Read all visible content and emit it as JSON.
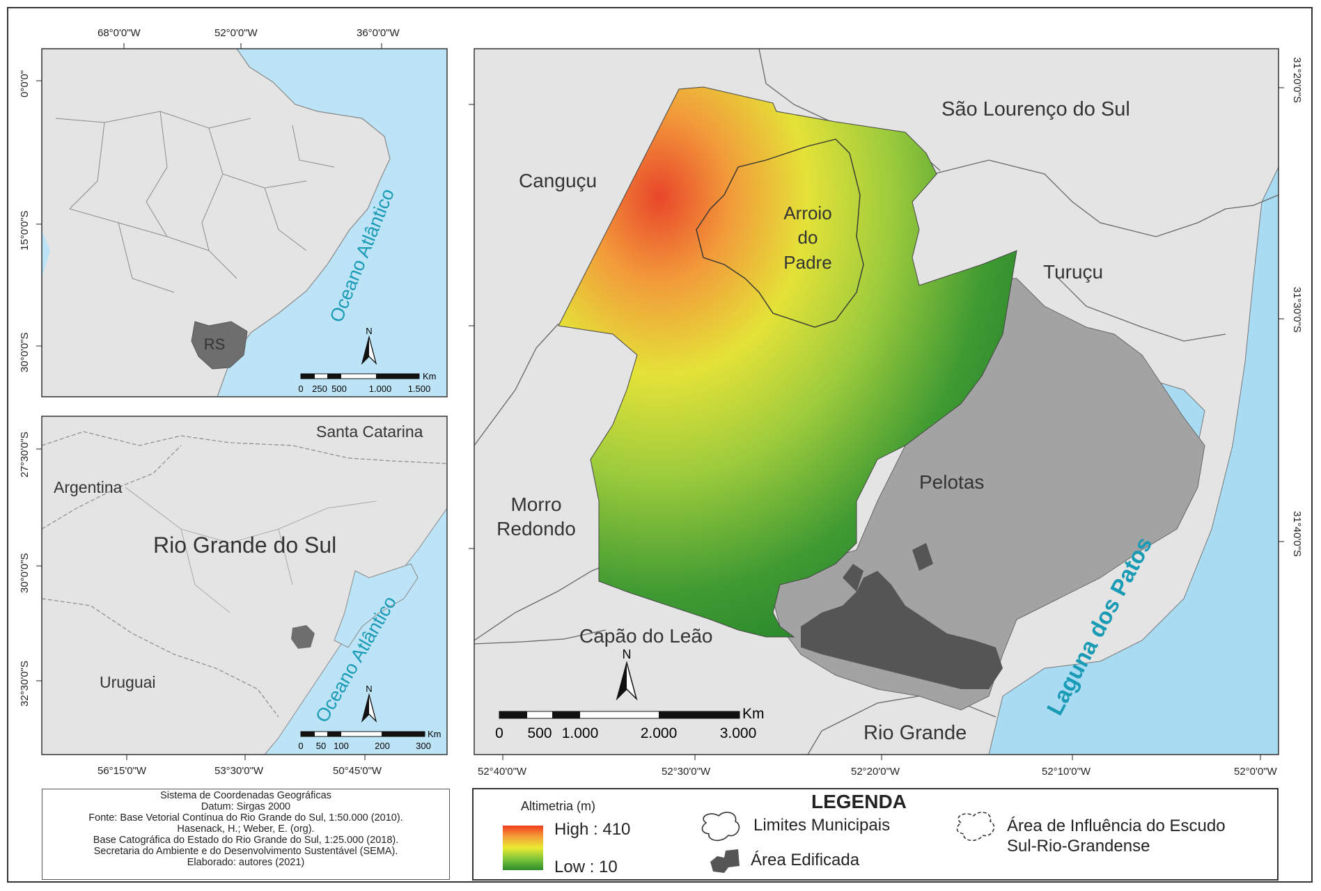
{
  "map_top_left": {
    "lon_labels": [
      "68°0'0\"W",
      "52°0'0\"W",
      "36°0'0\"W"
    ],
    "lat_labels": [
      "0°0'0\"",
      "15°0'0\"S",
      "30°0'0\"S"
    ],
    "ocean_label": "Oceano Atlântico",
    "state_label": "RS",
    "north": "N",
    "scale_unit": "Km",
    "scale_labels": [
      "0",
      "250",
      "500",
      "1.000",
      "1.500"
    ]
  },
  "map_bottom_left": {
    "lon_labels": [
      "56°15'0\"W",
      "53°30'0\"W",
      "50°45'0\"W"
    ],
    "lat_labels": [
      "27°30'0\"S",
      "30°0'0\"S",
      "32°30'0\"S"
    ],
    "places": [
      "Santa Catarina",
      "Argentina",
      "Rio Grande do Sul",
      "Uruguai"
    ],
    "ocean_label": "Oceano Atlântico",
    "north": "N",
    "scale_unit": "Km",
    "scale_labels": [
      "0",
      "50",
      "100",
      "200",
      "300"
    ]
  },
  "map_main": {
    "lon_labels": [
      "52°40'0\"W",
      "52°30'0\"W",
      "52°20'0\"W",
      "52°10'0\"W",
      "52°0'0\"W"
    ],
    "lat_labels": [
      "31°20'0\"S",
      "31°30'0\"S",
      "31°40'0\"S"
    ],
    "places": {
      "sao_lourenco": "São Lourenço do Sul",
      "cangucu": "Canguçu",
      "arroio": [
        "Arroio",
        "do",
        "Padre"
      ],
      "turucu": "Turuçu",
      "pelotas": "Pelotas",
      "morro": [
        "Morro",
        "Redondo"
      ],
      "capao": "Capão do Leão",
      "rio_grande": "Rio Grande",
      "laguna": "Laguna dos Patos"
    },
    "north": "N",
    "scale_unit": "Km",
    "scale_labels": [
      "0",
      "500",
      "1.000",
      "2.000",
      "3.000"
    ]
  },
  "notes": [
    "Sistema de Coordenadas Geográficas",
    "Datum: Sirgas 2000",
    "Fonte: Base Vetorial Contínua do Rio Grande do Sul, 1:50.000 (2010).",
    "Hasenack, H.; Weber, E. (org).",
    "Base Catográfica do Estado do Rio Grande do Sul, 1:25.000 (2018).",
    "Secretaria do Ambiente e do Desenvolvimento Sustentável (SEMA).",
    "Elaborado: autores (2021)"
  ],
  "legend": {
    "title": "LEGENDA",
    "altimetria": "Altimetria (m)",
    "high": "High : 410",
    "low": "Low : 10",
    "limites": "Limites Municipais",
    "edificada": "Área Edificada",
    "area_influencia": [
      "Área de Influência do Escudo",
      "Sul-Rio-Grandense"
    ]
  },
  "colors": {
    "ocean": "#bde3f6",
    "land": "#e4e4e4",
    "state": "#6e6e6e",
    "pelotas_gray": "#a3a3a3",
    "urban": "#555555",
    "lagoon": "#a9dbf3",
    "ocean_text": "#1a9bb5"
  }
}
